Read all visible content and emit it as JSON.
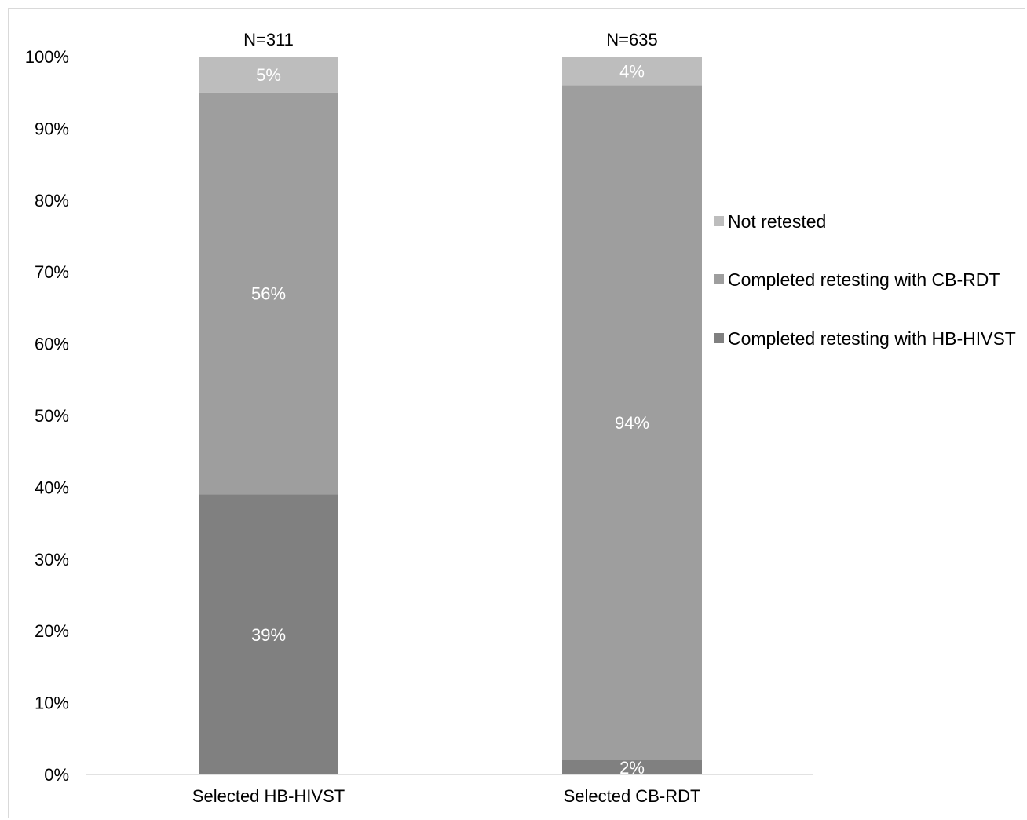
{
  "chart_data": {
    "type": "bar",
    "stacked": true,
    "percent_stacked": true,
    "categories": [
      "Selected HB-HIVST",
      "Selected CB-RDT"
    ],
    "top_labels": [
      "N=311",
      "N=635"
    ],
    "series": [
      {
        "name": "Completed retesting with HB-HIVST",
        "values": [
          39,
          2
        ],
        "labels": [
          "39%",
          "2%"
        ],
        "color": "#808080"
      },
      {
        "name": "Completed retesting with CB-RDT",
        "values": [
          56,
          94
        ],
        "labels": [
          "56%",
          "94%"
        ],
        "color": "#9e9e9e"
      },
      {
        "name": "Not retested",
        "values": [
          5,
          4
        ],
        "labels": [
          "5%",
          "4%"
        ],
        "color": "#bdbdbd"
      }
    ],
    "legend_order": [
      "Not retested",
      "Completed retesting with CB-RDT",
      "Completed retesting with HB-HIVST"
    ],
    "y_ticks": [
      "0%",
      "10%",
      "20%",
      "30%",
      "40%",
      "50%",
      "60%",
      "70%",
      "80%",
      "90%",
      "100%"
    ],
    "ylim": [
      0,
      100
    ],
    "grid": false,
    "legend_position": "right"
  }
}
